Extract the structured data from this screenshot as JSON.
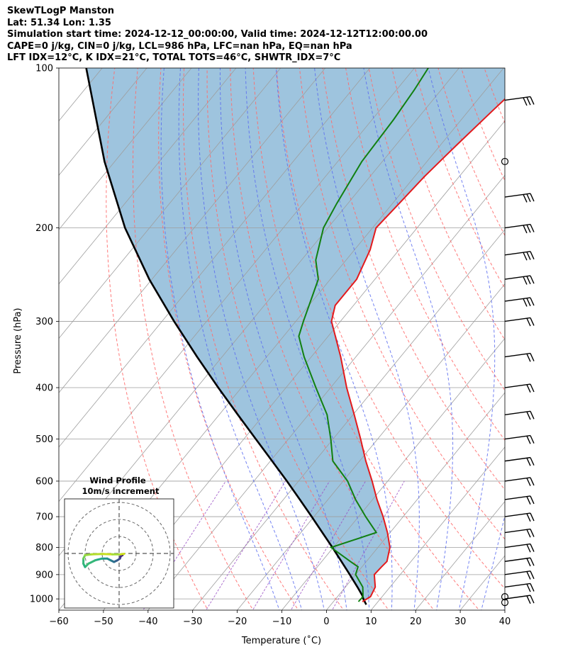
{
  "header": {
    "line1": "SkewTLogP Manston",
    "line2": "Lat: 51.34   Lon: 1.35",
    "line3": "Simulation start time: 2024-12-12_00:00:00, Valid time: 2024-12-12T12:00:00.00",
    "line4": "CAPE=0 j/kg, CIN=0 j/kg, LCL=986 hPa, LFC=nan hPa, EQ=nan hPa",
    "line5": "LFT IDX=12°C, K IDX=21°C, TOTAL TOTS=46°C, SHWTR_IDX=7°C"
  },
  "colors": {
    "temperature": "#e31a1c",
    "dewpoint": "#118011",
    "parcel": "#000000",
    "shading": "#9ec4de",
    "dry_adiabat": "#ff6b6b",
    "moist_adiabat": "#5b6cf0",
    "mixing_ratio": "#9a4fc4",
    "isotherm": "#9e9e9e"
  },
  "chart_data": [
    {
      "type": "line",
      "title": "SkewTLogP Manston",
      "xlabel": "Temperature (˚C)",
      "ylabel": "Pressure (hPa)",
      "xlim": [
        -60,
        40
      ],
      "ylim": [
        1050,
        100
      ],
      "yscale": "log",
      "skew": true,
      "grid": true,
      "x_ticks": [
        "−60",
        "−50",
        "−40",
        "−30",
        "−20",
        "−10",
        "0",
        "10",
        "20",
        "30",
        "40"
      ],
      "y_ticks": [
        "1000",
        "900",
        "800",
        "700",
        "600",
        "500",
        "400",
        "300",
        "200",
        "100"
      ],
      "series": [
        {
          "role": "temperature",
          "pressure": [
            1012,
            990,
            950,
            900,
            870,
            850,
            800,
            750,
            700,
            650,
            600,
            550,
            500,
            450,
            400,
            350,
            300,
            280,
            250,
            220,
            200,
            180,
            160,
            140,
            120,
            110,
            100
          ],
          "temperature": [
            6.5,
            7.4,
            6.7,
            4.2,
            4.4,
            4.6,
            2.7,
            -0.6,
            -4.5,
            -9.0,
            -13.5,
            -18.6,
            -23.8,
            -29.7,
            -36.4,
            -43.4,
            -52.0,
            -54.1,
            -54.1,
            -56.5,
            -59.2,
            -58.5,
            -57.8,
            -56.4,
            -54.6,
            -53.5,
            -51.6
          ]
        },
        {
          "role": "dewpoint",
          "pressure": [
            1012,
            990,
            950,
            900,
            870,
            850,
            800,
            750,
            700,
            650,
            600,
            550,
            500,
            450,
            400,
            350,
            320,
            300,
            250,
            230,
            200,
            180,
            150,
            125,
            110,
            100
          ],
          "dewpoint": [
            5.6,
            5.7,
            3.9,
            0.0,
            -0.9,
            -3.6,
            -10.5,
            -3.1,
            -8.4,
            -13.8,
            -19.0,
            -26.0,
            -30.5,
            -35.8,
            -43.3,
            -51.6,
            -56.6,
            -58.3,
            -62.7,
            -66.8,
            -71.0,
            -72.5,
            -74.6,
            -75.2,
            -76.0,
            -76.9
          ]
        },
        {
          "role": "parcel",
          "pressure": [
            1025,
            1000,
            986,
            950,
            900,
            850,
            800,
            750,
            700,
            650,
            600,
            550,
            500,
            450,
            400,
            350,
            300,
            250,
            200,
            150,
            100
          ],
          "temperature": [
            7.9,
            6.2,
            5.4,
            2.7,
            -1.3,
            -5.6,
            -10.2,
            -15.2,
            -20.5,
            -26.3,
            -32.6,
            -39.6,
            -47.3,
            -55.8,
            -65.2,
            -75.6,
            -87.3,
            -100.6,
            -115.5,
            -132.3,
            -153.6
          ]
        }
      ]
    },
    {
      "type": "line",
      "title": "Wind Profile",
      "subtitle": "10m/s increment",
      "note": "hodograph trace (u, v in m/s), colored by height"
    }
  ]
}
